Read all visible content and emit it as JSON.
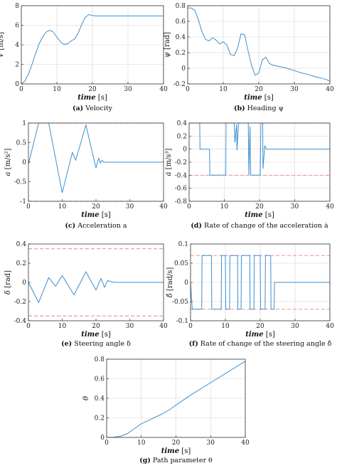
{
  "chart_data": [
    {
      "id": "a",
      "type": "line",
      "caption_label": "(a)",
      "caption_text": "Velocity",
      "ylabel": "V [m/s]",
      "xlabel": "time [s]",
      "xlim": [
        0,
        40
      ],
      "ylim": [
        0,
        8
      ],
      "xticks": [
        0,
        10,
        20,
        30,
        40
      ],
      "yticks": [
        0,
        2,
        4,
        6,
        8
      ],
      "grid": true,
      "series": [
        {
          "x": [
            0,
            1,
            2,
            3,
            4,
            5,
            6,
            7,
            8,
            9,
            10,
            11,
            12,
            13,
            14,
            15,
            16,
            17,
            18,
            19,
            20,
            21,
            25,
            30,
            35,
            40
          ],
          "y": [
            0,
            0.3,
            1.0,
            2.0,
            3.1,
            4.1,
            4.8,
            5.3,
            5.5,
            5.3,
            4.8,
            4.3,
            4.05,
            4.1,
            4.4,
            4.6,
            5.2,
            6.1,
            6.8,
            7.1,
            7.0,
            6.95,
            6.95,
            6.95,
            6.95,
            6.95
          ]
        }
      ],
      "limits": []
    },
    {
      "id": "b",
      "type": "line",
      "caption_label": "(b)",
      "caption_text": "Heading ψ",
      "ylabel": "ψ [rad]",
      "xlabel": "time [s]",
      "xlim": [
        0,
        40
      ],
      "ylim": [
        -0.2,
        0.8
      ],
      "xticks": [
        0,
        10,
        20,
        30,
        40
      ],
      "yticks": [
        -0.2,
        0,
        0.2,
        0.4,
        0.6,
        0.8
      ],
      "grid": true,
      "series": [
        {
          "x": [
            0,
            1,
            2,
            3,
            4,
            5,
            6,
            7,
            8,
            9,
            10,
            11,
            12,
            13,
            14,
            15,
            16,
            17,
            18,
            19,
            20,
            21,
            22,
            23,
            24,
            26,
            28,
            30,
            32,
            34,
            36,
            38,
            40
          ],
          "y": [
            0.77,
            0.77,
            0.74,
            0.62,
            0.47,
            0.37,
            0.35,
            0.39,
            0.36,
            0.31,
            0.34,
            0.3,
            0.18,
            0.16,
            0.25,
            0.44,
            0.43,
            0.22,
            0.03,
            -0.09,
            -0.06,
            0.11,
            0.14,
            0.06,
            0.04,
            0.02,
            0.0,
            -0.03,
            -0.06,
            -0.08,
            -0.11,
            -0.13,
            -0.16
          ]
        }
      ],
      "limits": []
    },
    {
      "id": "c",
      "type": "line",
      "caption_label": "(c)",
      "caption_text": "Acceleration a",
      "ylabel": "a [m/s²]",
      "xlabel": "time [s]",
      "xlim": [
        0,
        40
      ],
      "ylim": [
        -1,
        1
      ],
      "xticks": [
        0,
        10,
        20,
        30,
        40
      ],
      "yticks": [
        -1,
        -0.5,
        0,
        0.5,
        1
      ],
      "grid": false,
      "series": [
        {
          "x": [
            0,
            3,
            6,
            10,
            13,
            14,
            17,
            20,
            20.8,
            21.3,
            21.8,
            22.3,
            25,
            40
          ],
          "y": [
            -0.05,
            1.0,
            1.0,
            -0.78,
            0.25,
            0.05,
            0.95,
            -0.15,
            0.1,
            -0.02,
            0.05,
            0.0,
            0.0,
            0.0
          ]
        }
      ],
      "limits": [
        1,
        -1
      ]
    },
    {
      "id": "d",
      "type": "line",
      "caption_label": "(d)",
      "caption_text": "Rate of change of the acceleration ȧ",
      "ylabel": "ȧ [m/s³]",
      "xlabel": "time [s]",
      "xlim": [
        0,
        40
      ],
      "ylim": [
        -0.8,
        0.4
      ],
      "xticks": [
        0,
        10,
        20,
        30,
        40
      ],
      "yticks": [
        -0.8,
        -0.6,
        -0.4,
        -0.2,
        0,
        0.2,
        0.4
      ],
      "grid": true,
      "series": [
        {
          "x": [
            0,
            3,
            3.1,
            5.8,
            5.9,
            10.4,
            10.5,
            12.8,
            13.0,
            13.5,
            13.6,
            14.0,
            14.1,
            16.8,
            17.0,
            17.3,
            17.5,
            20.2,
            20.4,
            20.9,
            21.0,
            21.5,
            22,
            25,
            40
          ],
          "y": [
            0.4,
            0.4,
            0,
            0,
            -0.4,
            -0.4,
            0.4,
            0.4,
            0.1,
            0.38,
            -0.02,
            0.35,
            0.4,
            0.4,
            -0.4,
            0.35,
            -0.4,
            -0.4,
            0.4,
            0.4,
            -0.3,
            0.05,
            0,
            0,
            0
          ]
        }
      ],
      "limits": [
        0.4,
        -0.4
      ]
    },
    {
      "id": "e",
      "type": "line",
      "caption_label": "(e)",
      "caption_text": "Steering angle δ",
      "ylabel": "δ [rad]",
      "xlabel": "time [s]",
      "xlim": [
        0,
        40
      ],
      "ylim": [
        -0.4,
        0.4
      ],
      "xticks": [
        0,
        10,
        20,
        30,
        40
      ],
      "yticks": [
        -0.4,
        -0.2,
        0,
        0.2,
        0.4
      ],
      "grid": false,
      "series": [
        {
          "x": [
            0,
            3,
            6,
            8,
            10,
            13.5,
            17,
            20,
            21.5,
            22.5,
            23.5,
            24.5,
            26,
            40
          ],
          "y": [
            0,
            -0.21,
            0.05,
            -0.04,
            0.07,
            -0.13,
            0.11,
            -0.08,
            0.04,
            -0.05,
            0.02,
            0.005,
            0,
            0
          ]
        }
      ],
      "limits": [
        0.35,
        -0.35
      ]
    },
    {
      "id": "f",
      "type": "line",
      "caption_label": "(f)",
      "caption_text": "Rate of change of the steering angle δ̇",
      "ylabel": "δ̇ [rad/s]",
      "xlabel": "time [s]",
      "xlim": [
        0,
        40
      ],
      "ylim": [
        -0.1,
        0.1
      ],
      "xticks": [
        0,
        10,
        20,
        30,
        40
      ],
      "yticks": [
        -0.1,
        -0.05,
        0,
        0.05,
        0.1
      ],
      "grid": true,
      "series": [
        {
          "x": [
            0,
            0.5,
            3.2,
            3.3,
            6,
            6.1,
            8.8,
            8.9,
            10,
            10.1,
            11.2,
            11.3,
            13.5,
            13.6,
            14.5,
            14.6,
            17,
            17.1,
            18.2,
            18.3,
            20,
            20.1,
            21.4,
            21.5,
            23,
            23.1,
            24,
            24.1,
            25,
            40
          ],
          "y": [
            0,
            -0.07,
            -0.07,
            0.07,
            0.07,
            -0.07,
            -0.07,
            0.07,
            0.07,
            -0.07,
            -0.07,
            0.07,
            0.07,
            -0.07,
            -0.07,
            0.07,
            0.07,
            -0.07,
            -0.07,
            0.07,
            0.07,
            -0.07,
            -0.07,
            0.07,
            0.07,
            -0.07,
            -0.07,
            0.0,
            0,
            0
          ]
        }
      ],
      "limits": [
        0.07,
        -0.07
      ]
    },
    {
      "id": "g",
      "type": "line",
      "caption_label": "(g)",
      "caption_text": "Path parameter θ",
      "ylabel": "θ",
      "xlabel": "time [s]",
      "xlim": [
        0,
        40
      ],
      "ylim": [
        0,
        0.8
      ],
      "xticks": [
        0,
        10,
        20,
        30,
        40
      ],
      "yticks": [
        0,
        0.2,
        0.4,
        0.6,
        0.8
      ],
      "grid": true,
      "series": [
        {
          "x": [
            0,
            2,
            4,
            6,
            8,
            10,
            13,
            16,
            18,
            20,
            22,
            25,
            30,
            35,
            40
          ],
          "y": [
            0,
            0.002,
            0.012,
            0.04,
            0.09,
            0.14,
            0.19,
            0.24,
            0.28,
            0.33,
            0.38,
            0.45,
            0.56,
            0.67,
            0.78
          ]
        }
      ],
      "limits": []
    }
  ]
}
